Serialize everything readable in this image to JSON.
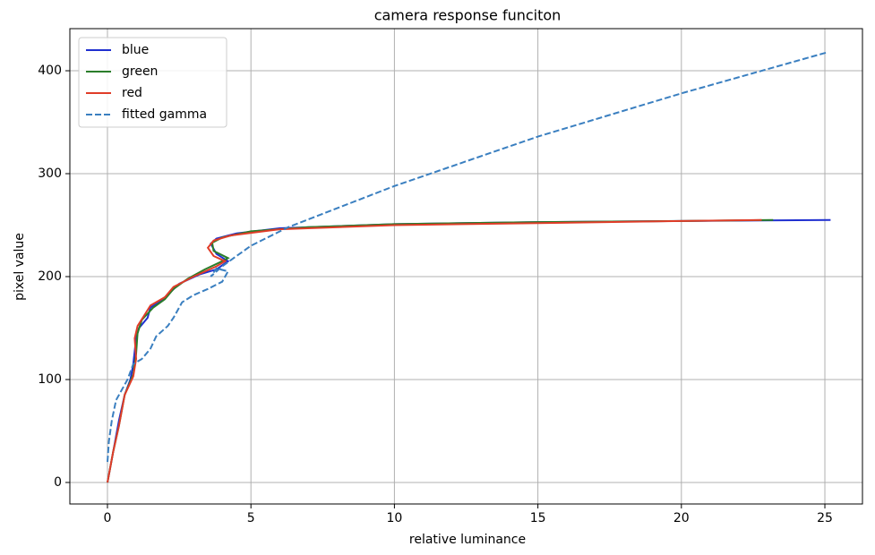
{
  "chart_data": {
    "type": "line",
    "title": "camera response funciton",
    "x_label": "relative luminance",
    "y_label": "pixel value",
    "xlim": [
      -1.31,
      26.31
    ],
    "ylim": [
      -20.9,
      440.9
    ],
    "xticks": [
      0,
      5,
      10,
      15,
      20,
      25
    ],
    "yticks": [
      0,
      100,
      200,
      300,
      400
    ],
    "grid": true,
    "legend": "upper left",
    "series": [
      {
        "name": "blue",
        "color": "#1f2fd0",
        "linestyle": "solid",
        "x": [
          0,
          0.2,
          0.4,
          0.6,
          0.8,
          0.9,
          1.0,
          1.1,
          1.4,
          1.5,
          1.8,
          2.2,
          2.5,
          3.2,
          3.8,
          4.2,
          3.8,
          3.6,
          3.8,
          4.5,
          6,
          10,
          15,
          20,
          25.2
        ],
        "values": [
          0,
          30,
          60,
          85,
          100,
          115,
          140,
          150,
          160,
          170,
          175,
          185,
          193,
          202,
          207,
          215,
          222,
          232,
          237,
          242,
          247,
          251,
          253,
          254,
          255
        ]
      },
      {
        "name": "green",
        "color": "#2a7d2a",
        "linestyle": "solid",
        "x": [
          0,
          0.2,
          0.4,
          0.6,
          0.9,
          1.0,
          1.05,
          1.2,
          1.6,
          2.0,
          2.3,
          2.8,
          3.4,
          4.0,
          4.2,
          3.7,
          3.65,
          4,
          5,
          7,
          10,
          15,
          20,
          23.2
        ],
        "values": [
          0,
          30,
          55,
          85,
          105,
          125,
          145,
          158,
          170,
          178,
          188,
          198,
          207,
          215,
          218,
          225,
          233,
          238,
          244,
          248,
          251,
          253,
          254,
          255
        ]
      },
      {
        "name": "red",
        "color": "#e03c28",
        "linestyle": "solid",
        "x": [
          0,
          0.2,
          0.4,
          0.6,
          0.9,
          1.0,
          0.95,
          1.05,
          1.3,
          1.5,
          2.0,
          2.3,
          3.0,
          3.8,
          4.1,
          3.7,
          3.5,
          3.7,
          4.3,
          6,
          10,
          15,
          20,
          22.8
        ],
        "values": [
          0,
          30,
          55,
          85,
          103,
          120,
          140,
          152,
          163,
          172,
          180,
          190,
          200,
          210,
          215,
          220,
          228,
          235,
          240,
          246,
          250,
          252,
          254,
          255
        ]
      },
      {
        "name": "fitted gamma",
        "color": "#3a7fc0",
        "linestyle": "dashed",
        "x": [
          0,
          0.05,
          0.15,
          0.3,
          0.5,
          0.7,
          0.9,
          1.2,
          1.5,
          1.7,
          2.1,
          2.3,
          2.6,
          3.0,
          3.5,
          4.0,
          4.2,
          3.8,
          3.6,
          4.0,
          5,
          6.3,
          10,
          15,
          20,
          25.1
        ],
        "values": [
          20,
          40,
          60,
          80,
          90,
          100,
          115,
          120,
          130,
          142,
          152,
          160,
          175,
          182,
          188,
          195,
          205,
          208,
          200,
          210,
          230,
          248,
          288,
          336,
          378,
          418
        ]
      }
    ]
  }
}
